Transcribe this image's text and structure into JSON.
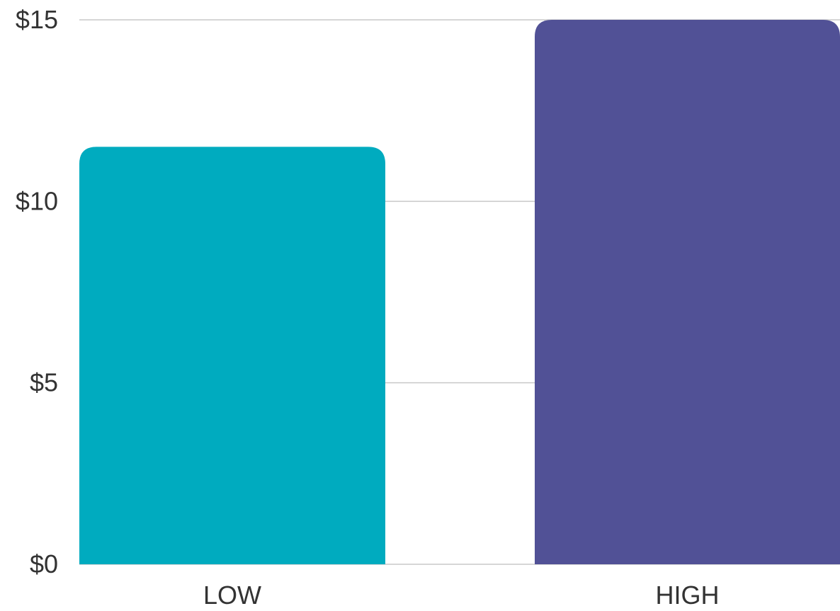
{
  "chart_data": {
    "type": "bar",
    "categories": [
      "LOW",
      "HIGH"
    ],
    "values": [
      11.5,
      15
    ],
    "colors": [
      "#00abbf",
      "#515196"
    ],
    "yticks": [
      {
        "value": 0,
        "label": "$0"
      },
      {
        "value": 5,
        "label": "$5"
      },
      {
        "value": 10,
        "label": "$10"
      },
      {
        "value": 15,
        "label": "$15"
      }
    ],
    "ylim": [
      0,
      15
    ],
    "grid": true,
    "legend": "none",
    "title": "",
    "xlabel": "",
    "ylabel": ""
  }
}
